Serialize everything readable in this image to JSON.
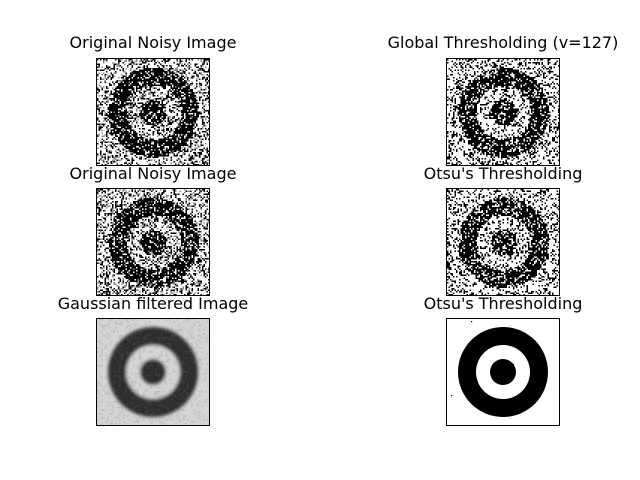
{
  "figure": {
    "panels": [
      {
        "id": "p1",
        "title": "Original Noisy Image",
        "kind": "noisy",
        "row": 0,
        "col": 0
      },
      {
        "id": "p2",
        "title": "Global Thresholding (v=127)",
        "kind": "binary-noisy",
        "row": 0,
        "col": 1
      },
      {
        "id": "p3",
        "title": "Original Noisy Image",
        "kind": "noisy",
        "row": 1,
        "col": 0
      },
      {
        "id": "p4",
        "title": "Otsu's Thresholding",
        "kind": "binary-noisy",
        "row": 1,
        "col": 1
      },
      {
        "id": "p5",
        "title": "Gaussian filtered Image",
        "kind": "blurred",
        "row": 2,
        "col": 0
      },
      {
        "id": "p6",
        "title": "Otsu's Thresholding",
        "kind": "binary-clean",
        "row": 2,
        "col": 1
      }
    ],
    "colors": {
      "ink": "#000000",
      "paper": "#ffffff",
      "blur_light": "#d4d4d4",
      "blur_dark": "#2e2e2e"
    }
  }
}
